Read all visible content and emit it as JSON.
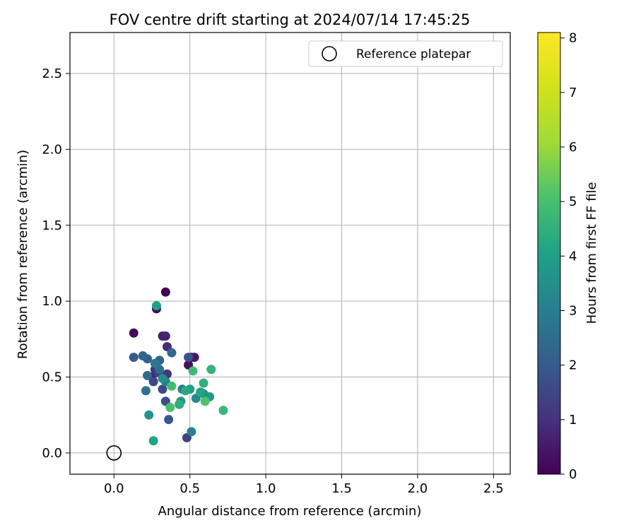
{
  "chart_data": {
    "type": "scatter",
    "title": "FOV centre drift starting at 2024/07/14 17:45:25",
    "xlabel": "Angular distance from reference (arcmin)",
    "ylabel": "Rotation from reference (arcmin)",
    "xlim": [
      -0.29,
      2.61
    ],
    "ylim": [
      -0.14,
      2.77
    ],
    "xticks": [
      0.0,
      0.5,
      1.0,
      1.5,
      2.0,
      2.5
    ],
    "xtick_labels": [
      "0.0",
      "0.5",
      "1.0",
      "1.5",
      "2.0",
      "2.5"
    ],
    "yticks": [
      0.0,
      0.5,
      1.0,
      1.5,
      2.0,
      2.5
    ],
    "ytick_labels": [
      "0.0",
      "0.5",
      "1.0",
      "1.5",
      "2.0",
      "2.5"
    ],
    "grid": true,
    "legend": {
      "placement": "top-right",
      "entries": [
        "Reference platepar"
      ]
    },
    "reference_point": {
      "label": "Reference platepar",
      "x": 0.0,
      "y": 0.0
    },
    "colorbar": {
      "label": "Hours from first FF file",
      "colormap": "viridis",
      "range": [
        0,
        8.1
      ],
      "ticks": [
        0,
        1,
        2,
        3,
        4,
        5,
        6,
        7,
        8
      ],
      "tick_labels": [
        "0",
        "1",
        "2",
        "3",
        "4",
        "5",
        "6",
        "7",
        "8"
      ]
    },
    "points": [
      [
        0.34,
        1.06,
        0.0
      ],
      [
        0.28,
        0.95,
        0.1
      ],
      [
        0.13,
        0.79,
        0.2
      ],
      [
        0.49,
        0.58,
        0.3
      ],
      [
        0.51,
        0.63,
        0.4
      ],
      [
        0.53,
        0.63,
        0.5
      ],
      [
        0.32,
        0.77,
        0.6
      ],
      [
        0.34,
        0.77,
        0.7
      ],
      [
        0.25,
        0.5,
        0.8
      ],
      [
        0.35,
        0.7,
        0.9
      ],
      [
        0.27,
        0.55,
        1.0
      ],
      [
        0.35,
        0.52,
        1.1
      ],
      [
        0.57,
        0.4,
        1.2
      ],
      [
        0.29,
        0.53,
        1.3
      ],
      [
        0.48,
        0.1,
        1.4
      ],
      [
        0.26,
        0.47,
        1.5
      ],
      [
        0.32,
        0.42,
        1.6
      ],
      [
        0.34,
        0.34,
        1.7
      ],
      [
        0.49,
        0.63,
        1.8
      ],
      [
        0.36,
        0.22,
        1.9
      ],
      [
        0.13,
        0.63,
        2.0
      ],
      [
        0.22,
        0.62,
        2.1
      ],
      [
        0.3,
        0.61,
        2.2
      ],
      [
        0.19,
        0.64,
        2.3
      ],
      [
        0.38,
        0.66,
        2.4
      ],
      [
        0.22,
        0.51,
        2.5
      ],
      [
        0.3,
        0.55,
        2.6
      ],
      [
        0.21,
        0.41,
        2.7
      ],
      [
        0.27,
        0.59,
        2.8
      ],
      [
        0.45,
        0.42,
        2.9
      ],
      [
        0.43,
        0.32,
        3.0
      ],
      [
        0.34,
        0.47,
        3.1
      ],
      [
        0.51,
        0.14,
        3.2
      ],
      [
        0.59,
        0.39,
        3.3
      ],
      [
        0.54,
        0.36,
        3.4
      ],
      [
        0.32,
        0.49,
        3.5
      ],
      [
        0.44,
        0.34,
        3.6
      ],
      [
        0.23,
        0.25,
        3.7
      ],
      [
        0.63,
        0.37,
        3.8
      ],
      [
        0.5,
        0.42,
        3.9
      ],
      [
        0.28,
        0.97,
        4.0
      ],
      [
        0.26,
        0.08,
        4.1
      ],
      [
        0.57,
        0.4,
        4.2
      ],
      [
        0.47,
        0.41,
        4.3
      ],
      [
        0.43,
        0.32,
        4.4
      ],
      [
        0.59,
        0.46,
        4.5
      ],
      [
        0.64,
        0.55,
        4.6
      ],
      [
        0.72,
        0.28,
        4.7
      ],
      [
        0.52,
        0.54,
        4.8
      ],
      [
        0.38,
        0.44,
        4.9
      ],
      [
        0.37,
        0.3,
        5.0
      ],
      [
        0.6,
        0.34,
        5.1
      ]
    ]
  }
}
